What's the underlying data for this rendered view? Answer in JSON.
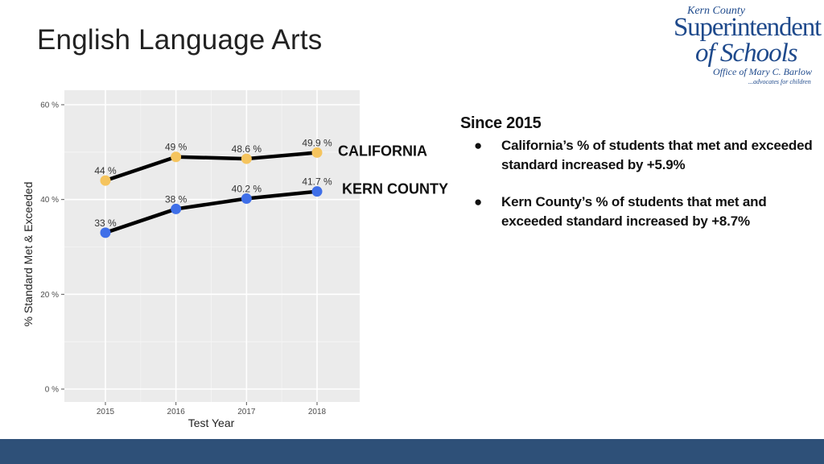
{
  "slide": {
    "title": "English Language Arts"
  },
  "logo": {
    "line1": "Kern County",
    "line2": "Superintendent",
    "line3": "of Schools",
    "line4": "Office of Mary C. Barlow",
    "line5": "...advocates for children"
  },
  "chart_data": {
    "type": "line",
    "x": [
      "2015",
      "2016",
      "2017",
      "2018"
    ],
    "xlabel": "Test Year",
    "ylabel": "% Standard Met & Exceeded",
    "ylim": [
      0,
      60
    ],
    "yticks": [
      0,
      20,
      40,
      60
    ],
    "ytick_labels": [
      "0 %",
      "20 %",
      "40 %",
      "60 %"
    ],
    "grid": true,
    "series": [
      {
        "name": "CALIFORNIA",
        "color": "#f5c45e",
        "values": [
          44,
          49,
          48.6,
          49.9
        ],
        "labels": [
          "44 %",
          "49 %",
          "48.6 %",
          "49.9 %"
        ]
      },
      {
        "name": "KERN COUNTY",
        "color": "#3f6fe8",
        "values": [
          33,
          38,
          40.2,
          41.7
        ],
        "labels": [
          "33 %",
          "38 %",
          "40.2 %",
          "41.7 %"
        ]
      }
    ]
  },
  "notes": {
    "heading": "Since 2015",
    "bullet_glyph": "●",
    "items": [
      "California’s % of students that met and exceeded standard increased by  +5.9%",
      "Kern County’s % of students that met and exceeded standard increased by  +8.7%"
    ]
  },
  "colors": {
    "footer": "#2e5078",
    "panel": "#ebebeb",
    "line": "#000000"
  }
}
